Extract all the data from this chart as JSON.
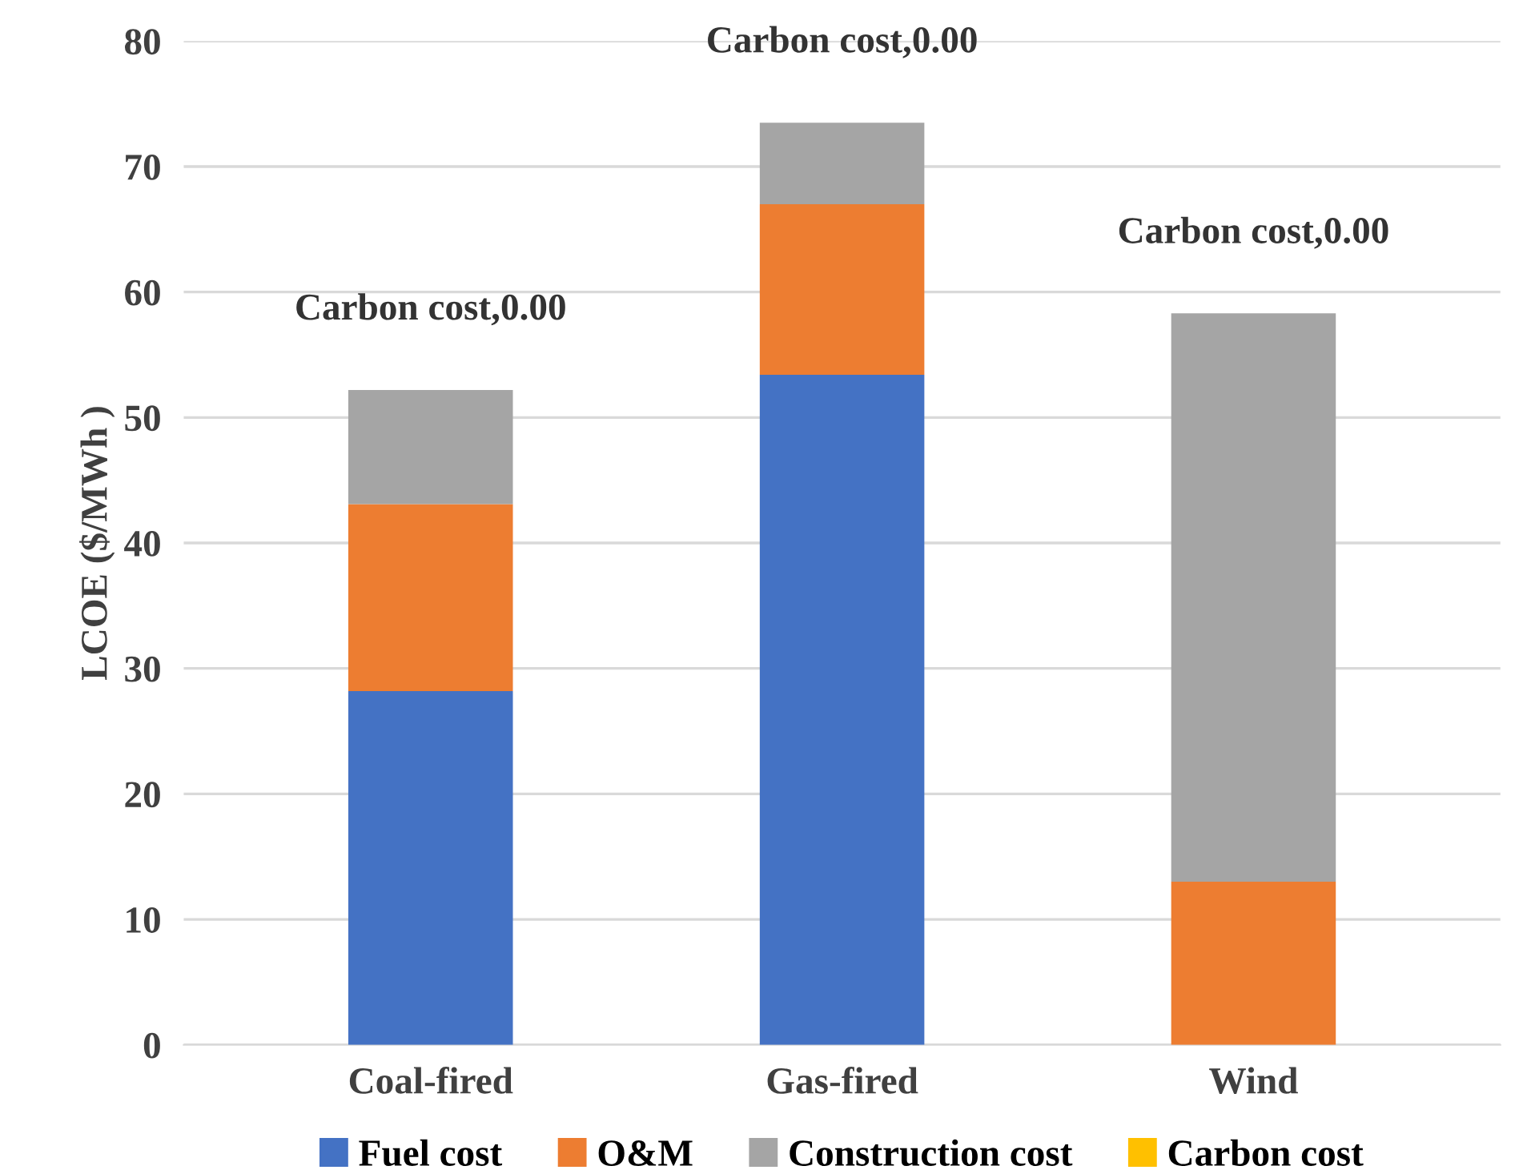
{
  "chart_data": {
    "type": "bar",
    "stacked": true,
    "ylabel": "LCOE ($/MWh )",
    "categories": [
      "Coal-fired",
      "Gas-fired",
      "Wind"
    ],
    "series": [
      {
        "name": "Fuel cost",
        "color": "#4472c4",
        "values": [
          28.2,
          53.4,
          0
        ]
      },
      {
        "name": "O&M",
        "color": "#ed7d31",
        "values": [
          14.9,
          13.6,
          13.0
        ]
      },
      {
        "name": "Construction cost",
        "color": "#a5a5a5",
        "values": [
          9.1,
          6.5,
          45.3
        ]
      },
      {
        "name": "Carbon cost",
        "color": "#ffc000",
        "values": [
          0,
          0,
          0
        ],
        "value_labels": [
          "Carbon cost,0.00",
          "Carbon cost,0.00",
          "Carbon cost,0.00"
        ]
      }
    ],
    "ylim": [
      0,
      80
    ],
    "yticks": [
      0,
      10,
      20,
      30,
      40,
      50,
      60,
      70,
      80
    ],
    "grid": "y",
    "legend": "bottom"
  }
}
